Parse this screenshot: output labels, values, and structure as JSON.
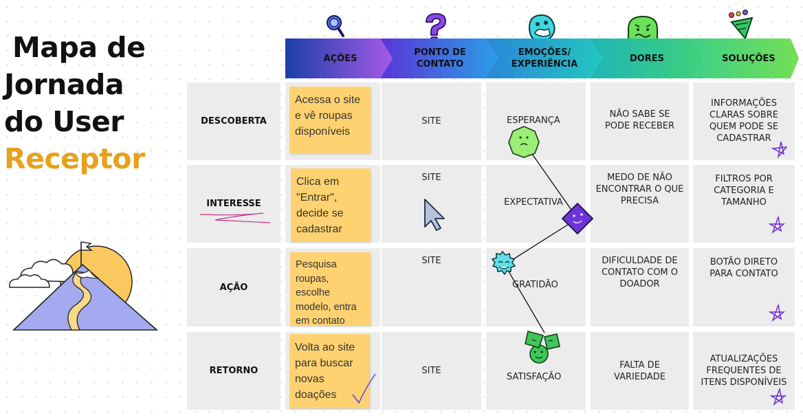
{
  "title": {
    "line1": "Mapa de",
    "line2": "Jornada",
    "line3": "do User",
    "accent": "Receptor"
  },
  "headers": [
    "AÇÕES",
    "PONTO DE CONTATO",
    "EMOÇÕES/ EXPERIÊNCIA",
    "DORES",
    "SOLUÇÕES"
  ],
  "header_colors": {
    "acoes": [
      "#1c3fa8",
      "#a45ae6"
    ],
    "ponto": [
      "#5a35d8",
      "#2a9ee6"
    ],
    "emocoes": [
      "#2a86d8",
      "#22c6c0"
    ],
    "dores": [
      "#1fb6b6",
      "#3fd07a"
    ],
    "solucoes": [
      "#3fcf86",
      "#74df55"
    ]
  },
  "rows": [
    {
      "label": "DESCOBERTA",
      "acao": "Acessa o site e vê roupas disponíveis",
      "ponto": "SITE",
      "emocao": "ESPERANÇA",
      "dor": "NÃO SABE SE PODE RECEBER",
      "solucao": "INFORMAÇÕES CLARAS SOBRE QUEM PODE SE CADASTRAR"
    },
    {
      "label": "INTERESSE",
      "acao": "Clica em \"Entrar\", decide se cadastrar",
      "ponto": "SITE",
      "emocao": "EXPECTATIVA",
      "dor": "MEDO DE NÃO ENCONTRAR O QUE PRECISA",
      "solucao": "FILTROS POR CATEGORIA E TAMANHO"
    },
    {
      "label": "AÇÃO",
      "acao": "Pesquisa roupas, escolhe modelo, entra em contato",
      "ponto": "SITE",
      "emocao": "GRATIDÃO",
      "dor": "DIFICULDADE DE CONTATO COM O DOADOR",
      "solucao": "BOTÃO DIRETO PARA CONTATO"
    },
    {
      "label": "RETORNO",
      "acao": "Volta ao site para buscar novas doações",
      "ponto": "SITE",
      "emocao": "SATISFAÇÃO",
      "dor": "FALTA DE VARIEDADE",
      "solucao": "ATUALIZAÇÕES FREQUENTES DE ITENS DISPONÍVEIS"
    }
  ],
  "icons": [
    "magnifier-icon",
    "question-mark-icon",
    "thinking-emoji-icon",
    "worried-face-icon",
    "party-popper-icon",
    "mouse-cursor-icon",
    "mountain-flag-illustration",
    "star-doodle-icon",
    "checkmark-doodle-icon"
  ],
  "colors": {
    "accent": "#e6a11d",
    "sticky_note": "#ffd271",
    "cell": "#ececec",
    "doodle": "#7a2ee0"
  }
}
